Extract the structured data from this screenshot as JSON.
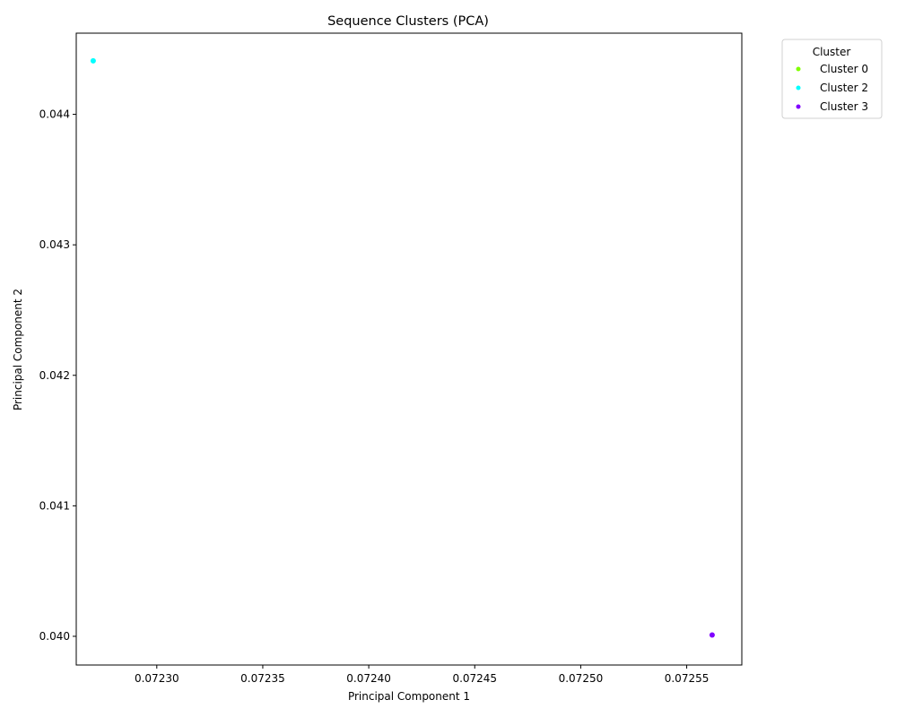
{
  "chart_data": {
    "type": "scatter",
    "title": "Sequence Clusters (PCA)",
    "xlabel": "Principal Component 1",
    "ylabel": "Principal Component 2",
    "xlim": [
      0.072262,
      0.072576
    ],
    "ylim": [
      0.03978,
      0.044622
    ],
    "xticks": [
      "0.07230",
      "0.07235",
      "0.07240",
      "0.07245",
      "0.07250",
      "0.07255"
    ],
    "xtick_values": [
      0.0723,
      0.07235,
      0.0724,
      0.07245,
      0.0725,
      0.07255
    ],
    "yticks": [
      "0.040",
      "0.041",
      "0.042",
      "0.043",
      "0.044"
    ],
    "ytick_values": [
      0.04,
      0.041,
      0.042,
      0.043,
      0.044
    ],
    "grid": false,
    "legend": {
      "title": "Cluster",
      "placement": "outside-top-right",
      "entries": [
        "Cluster 0",
        "Cluster 2",
        "Cluster 3"
      ]
    },
    "series": [
      {
        "name": "Cluster 0",
        "color": "#80ff00",
        "points": []
      },
      {
        "name": "Cluster 2",
        "color": "#00ffff",
        "points": [
          {
            "x": 0.07227,
            "y": 0.04441
          }
        ]
      },
      {
        "name": "Cluster 3",
        "color": "#8000ff",
        "points": [
          {
            "x": 0.072562,
            "y": 0.04001
          }
        ]
      }
    ]
  }
}
